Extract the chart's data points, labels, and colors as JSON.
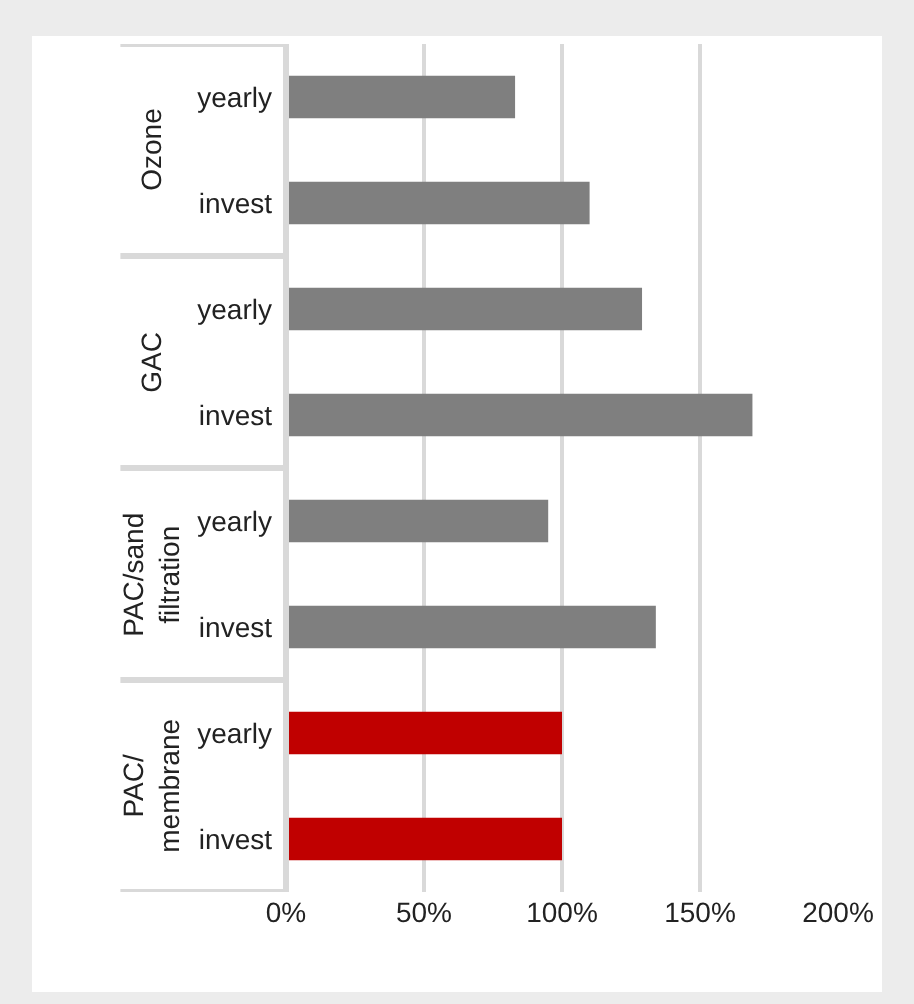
{
  "chart_data": {
    "type": "bar",
    "orientation": "horizontal",
    "categories": [
      "yearly",
      "invest",
      "yearly",
      "invest",
      "yearly",
      "invest",
      "yearly",
      "invest"
    ],
    "values": [
      83,
      110,
      129,
      169,
      95,
      134,
      100,
      100
    ],
    "colors": [
      "#7f7f7f",
      "#7f7f7f",
      "#7f7f7f",
      "#7f7f7f",
      "#7f7f7f",
      "#7f7f7f",
      "#c00000",
      "#c00000"
    ],
    "xlim": [
      0,
      200
    ],
    "xticks": [
      {
        "value": 0,
        "label": "0%"
      },
      {
        "value": 50,
        "label": "50%"
      },
      {
        "value": 100,
        "label": "100%"
      },
      {
        "value": 150,
        "label": "150%"
      },
      {
        "value": 200,
        "label": "200%"
      }
    ],
    "grid": "x",
    "annotations": [
      "Ozone",
      "GAC",
      "PAC/sand filtration",
      "PAC/ membrane"
    ]
  }
}
